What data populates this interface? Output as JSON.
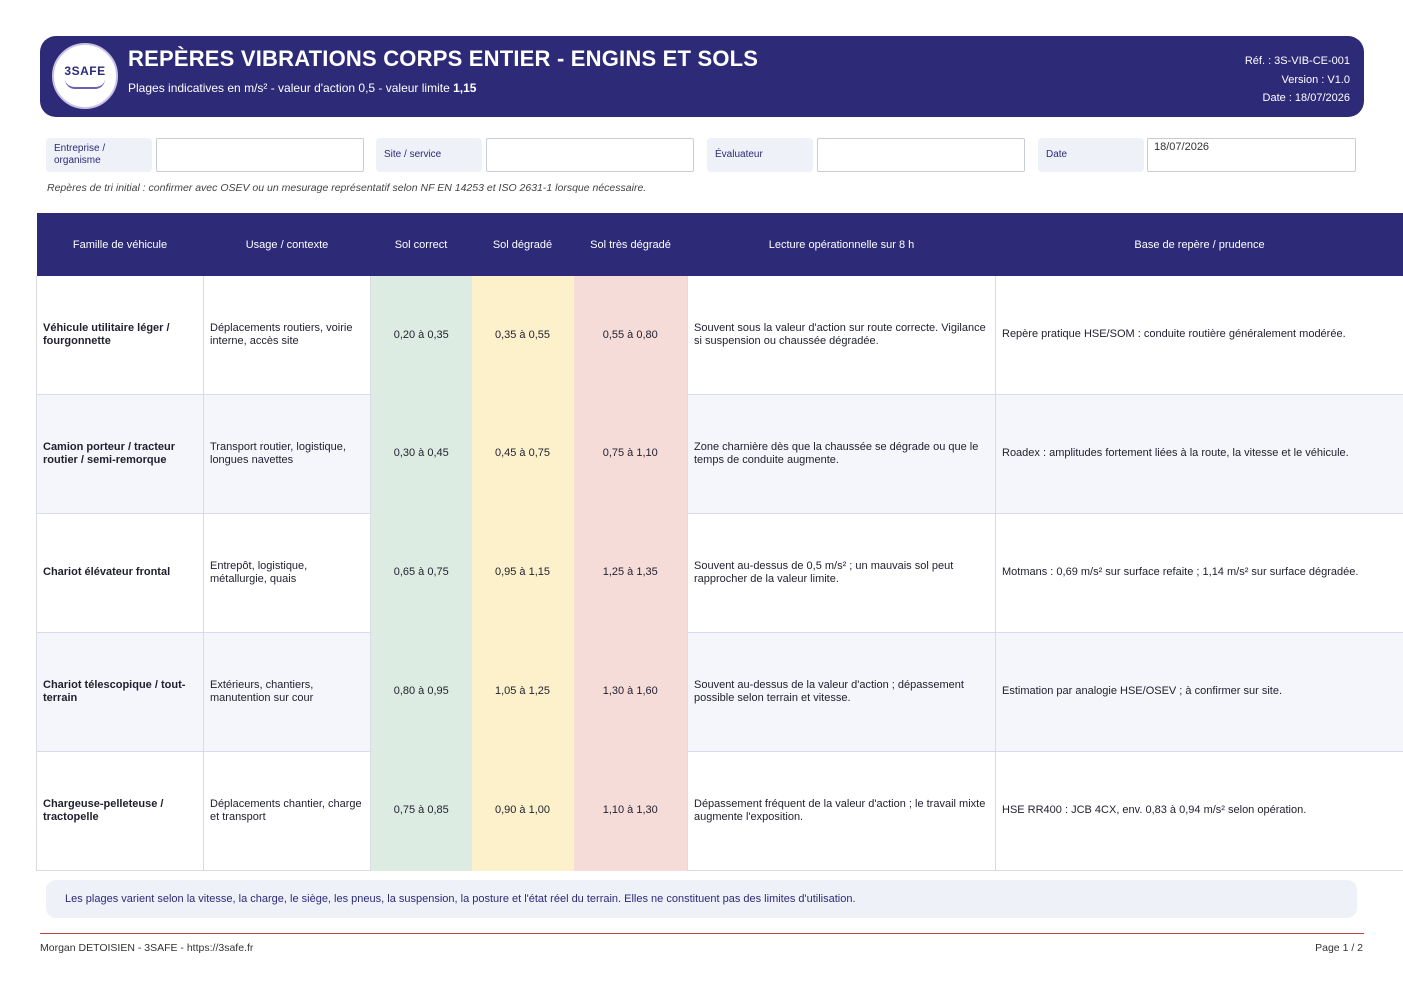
{
  "header": {
    "logo_text": "3SAFE",
    "title": "REPÈRES VIBRATIONS CORPS ENTIER - ENGINS ET SOLS",
    "subtitle_prefix": "Plages indicatives en m/s² - valeur d'action 0,5 - valeur limite ",
    "subtitle_limit": "1,15",
    "ref": "Réf. : 3S-VIB-CE-001",
    "version": "Version : V1.0",
    "date": "Date : 18/07/2026"
  },
  "form": {
    "company_label": "Entreprise / organisme",
    "company_value": "",
    "site_label": "Site / service",
    "site_value": "",
    "evaluator_label": "Évaluateur",
    "evaluator_value": "",
    "date_label": "Date",
    "date_value": "18/07/2026"
  },
  "note": "Repères de tri initial : confirmer avec OSEV ou un mesurage représentatif selon NF EN 14253 et ISO 2631-1 lorsque nécessaire.",
  "table": {
    "headers": [
      "Famille de véhicule",
      "Usage / contexte",
      "Sol correct",
      "Sol dégradé",
      "Sol très dégradé",
      "Lecture opérationnelle sur 8 h",
      "Base de repère / prudence"
    ],
    "rows": [
      {
        "family": "Véhicule utilitaire léger / fourgonnette",
        "usage": "Déplacements routiers, voirie interne, accès site",
        "correct": "0,20 à 0,35",
        "degrade": "0,35 à 0,55",
        "tres_degrade": "0,55 à 0,80",
        "lecture": "Souvent sous la valeur d'action sur route correcte. Vigilance si suspension ou chaussée dégradée.",
        "base": "Repère pratique HSE/SOM : conduite routière généralement modérée."
      },
      {
        "family": "Camion porteur / tracteur routier / semi-remorque",
        "usage": "Transport routier, logistique, longues navettes",
        "correct": "0,30 à 0,45",
        "degrade": "0,45 à 0,75",
        "tres_degrade": "0,75 à 1,10",
        "lecture": "Zone charnière dès que la chaussée se dégrade ou que le temps de conduite augmente.",
        "base": "Roadex : amplitudes fortement liées à la route, la vitesse et le véhicule."
      },
      {
        "family": "Chariot élévateur frontal",
        "usage": "Entrepôt, logistique, métallurgie, quais",
        "correct": "0,65 à 0,75",
        "degrade": "0,95 à 1,15",
        "tres_degrade": "1,25 à 1,35",
        "lecture": "Souvent au-dessus de 0,5 m/s² ; un mauvais sol peut rapprocher de la valeur limite.",
        "base": "Motmans : 0,69 m/s² sur surface refaite ; 1,14 m/s² sur surface dégradée."
      },
      {
        "family": "Chariot télescopique / tout-terrain",
        "usage": "Extérieurs, chantiers, manutention sur cour",
        "correct": "0,80 à 0,95",
        "degrade": "1,05 à 1,25",
        "tres_degrade": "1,30 à 1,60",
        "lecture": "Souvent au-dessus de la valeur d'action ; dépassement possible selon terrain et vitesse.",
        "base": "Estimation par analogie HSE/OSEV ; à confirmer sur site."
      },
      {
        "family": "Chargeuse-pelleteuse / tractopelle",
        "usage": "Déplacements chantier, charge et transport",
        "correct": "0,75 à 0,85",
        "degrade": "0,90 à 1,00",
        "tres_degrade": "1,10 à 1,30",
        "lecture": "Dépassement fréquent de la valeur d'action ; le travail mixte augmente l'exposition.",
        "base": "HSE RR400 : JCB 4CX, env. 0,83 à 0,94 m/s² selon opération."
      }
    ]
  },
  "footnote": "Les plages varient selon la vitesse, la charge, le siège, les pneus, la suspension, la posture et l'état réel du terrain. Elles ne constituent pas des limites d'utilisation.",
  "footer": {
    "author": "Morgan DETOISIEN - 3SAFE - https://3safe.fr",
    "page": "Page 1 / 2"
  },
  "colors": {
    "primary": "#2d2a78",
    "sol_correct": "#dcece3",
    "sol_degrade": "#fdf1cc",
    "sol_tres_degrade": "#f6dcd9",
    "rule": "#b5473e"
  }
}
